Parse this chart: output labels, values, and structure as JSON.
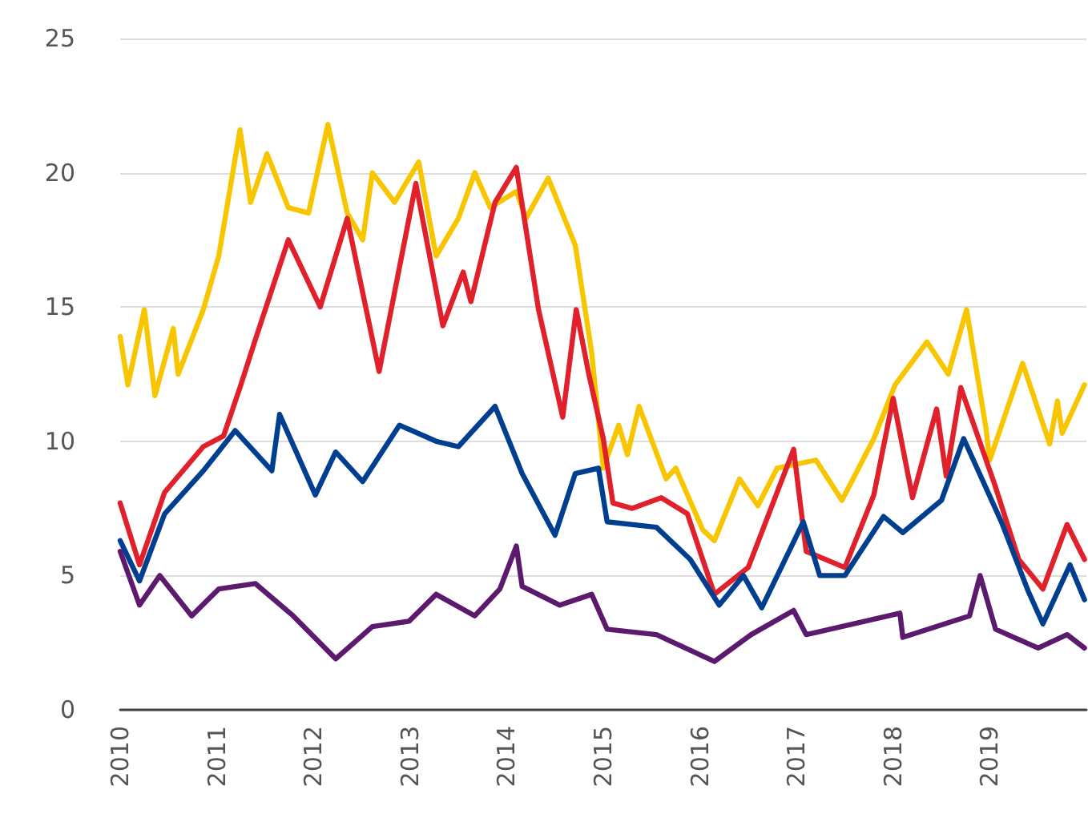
{
  "chart_data": {
    "type": "line",
    "xlim": [
      2010,
      2020
    ],
    "xticks": [
      2010,
      2011,
      2012,
      2013,
      2014,
      2015,
      2016,
      2017,
      2018,
      2019
    ],
    "ylim": [
      0,
      25
    ],
    "yticks": [
      0,
      5,
      10,
      15,
      20,
      25
    ],
    "grid": "y",
    "marker": "none",
    "line_style": "solid",
    "series": [
      {
        "color": "#f7c600",
        "x": [
          2010.0,
          2010.08,
          2010.25,
          2010.36,
          2010.55,
          2010.6,
          2010.86,
          2011.02,
          2011.24,
          2011.35,
          2011.52,
          2011.74,
          2011.95,
          2012.15,
          2012.35,
          2012.51,
          2012.61,
          2012.84,
          2013.09,
          2013.27,
          2013.5,
          2013.67,
          2013.83,
          2014.1,
          2014.2,
          2014.43,
          2014.71,
          2014.88,
          2015.0,
          2015.16,
          2015.25,
          2015.37,
          2015.65,
          2015.75,
          2016.03,
          2016.15,
          2016.41,
          2016.6,
          2016.8,
          2017.2,
          2017.47,
          2017.8,
          2018.02,
          2018.35,
          2018.57,
          2018.76,
          2018.96,
          2019.0,
          2019.34,
          2019.62,
          2019.7,
          2019.75,
          2019.98
        ],
        "values": [
          13.9,
          12.1,
          14.9,
          11.7,
          14.2,
          12.5,
          14.9,
          16.9,
          21.6,
          18.9,
          20.7,
          18.7,
          18.5,
          21.8,
          18.5,
          17.5,
          20.0,
          18.9,
          20.4,
          16.9,
          18.3,
          20.0,
          18.7,
          19.3,
          18.3,
          19.8,
          17.3,
          13.3,
          9.0,
          10.6,
          9.5,
          11.3,
          8.6,
          9.0,
          6.7,
          6.3,
          8.6,
          7.6,
          9.0,
          9.3,
          7.8,
          10.1,
          12.1,
          13.7,
          12.5,
          14.9,
          10.5,
          9.3,
          12.9,
          9.9,
          11.5,
          10.3,
          12.1
        ]
      },
      {
        "color": "#e0202a",
        "x": [
          2010.0,
          2010.2,
          2010.46,
          2010.86,
          2011.07,
          2011.24,
          2011.4,
          2011.74,
          2012.07,
          2012.35,
          2012.68,
          2013.06,
          2013.34,
          2013.55,
          2013.63,
          2013.88,
          2014.1,
          2014.33,
          2014.58,
          2014.72,
          2014.85,
          2015.0,
          2015.1,
          2015.3,
          2015.6,
          2015.87,
          2016.15,
          2016.5,
          2016.97,
          2017.1,
          2017.5,
          2017.8,
          2018.0,
          2018.2,
          2018.45,
          2018.55,
          2018.7,
          2019.05,
          2019.3,
          2019.55,
          2019.8,
          2019.98
        ],
        "values": [
          7.7,
          5.4,
          8.1,
          9.8,
          10.2,
          12.0,
          13.8,
          17.5,
          15.0,
          18.3,
          12.6,
          19.6,
          14.3,
          16.3,
          15.2,
          18.9,
          20.2,
          14.9,
          10.9,
          14.9,
          12.5,
          10.1,
          7.7,
          7.5,
          7.9,
          7.3,
          4.3,
          5.3,
          9.7,
          5.9,
          5.3,
          8.0,
          11.6,
          7.9,
          11.2,
          8.7,
          12.0,
          8.4,
          5.6,
          4.5,
          6.9,
          5.6
        ]
      },
      {
        "color": "#003f8f",
        "x": [
          2010.0,
          2010.2,
          2010.46,
          2010.86,
          2011.19,
          2011.57,
          2011.65,
          2012.02,
          2012.23,
          2012.51,
          2012.89,
          2013.27,
          2013.5,
          2013.88,
          2014.16,
          2014.5,
          2014.71,
          2014.95,
          2015.04,
          2015.55,
          2015.9,
          2016.2,
          2016.45,
          2016.64,
          2017.07,
          2017.24,
          2017.5,
          2017.9,
          2018.1,
          2018.5,
          2018.73,
          2019.12,
          2019.4,
          2019.55,
          2019.83,
          2019.98
        ],
        "values": [
          6.3,
          4.8,
          7.3,
          8.9,
          10.4,
          8.9,
          11.0,
          8.0,
          9.6,
          8.5,
          10.6,
          10.0,
          9.8,
          11.3,
          8.8,
          6.5,
          8.8,
          9.0,
          7.0,
          6.8,
          5.6,
          3.9,
          5.0,
          3.8,
          7.0,
          5.0,
          5.0,
          7.2,
          6.6,
          7.8,
          10.1,
          7.0,
          4.4,
          3.2,
          5.4,
          4.1
        ]
      },
      {
        "color": "#5b1a6e",
        "x": [
          2010.0,
          2010.2,
          2010.41,
          2010.74,
          2011.02,
          2011.4,
          2011.79,
          2012.23,
          2012.61,
          2012.99,
          2013.27,
          2013.67,
          2013.93,
          2014.1,
          2014.16,
          2014.55,
          2014.88,
          2015.04,
          2015.55,
          2016.15,
          2016.53,
          2016.97,
          2017.1,
          2018.07,
          2018.1,
          2018.79,
          2018.9,
          2019.06,
          2019.5,
          2019.8,
          2019.98
        ],
        "values": [
          5.9,
          3.9,
          5.0,
          3.5,
          4.5,
          4.7,
          3.5,
          1.9,
          3.1,
          3.3,
          4.3,
          3.5,
          4.5,
          6.1,
          4.6,
          3.9,
          4.3,
          3.0,
          2.8,
          1.8,
          2.8,
          3.7,
          2.8,
          3.6,
          2.7,
          3.5,
          5.0,
          3.0,
          2.3,
          2.8,
          2.3
        ]
      }
    ]
  }
}
